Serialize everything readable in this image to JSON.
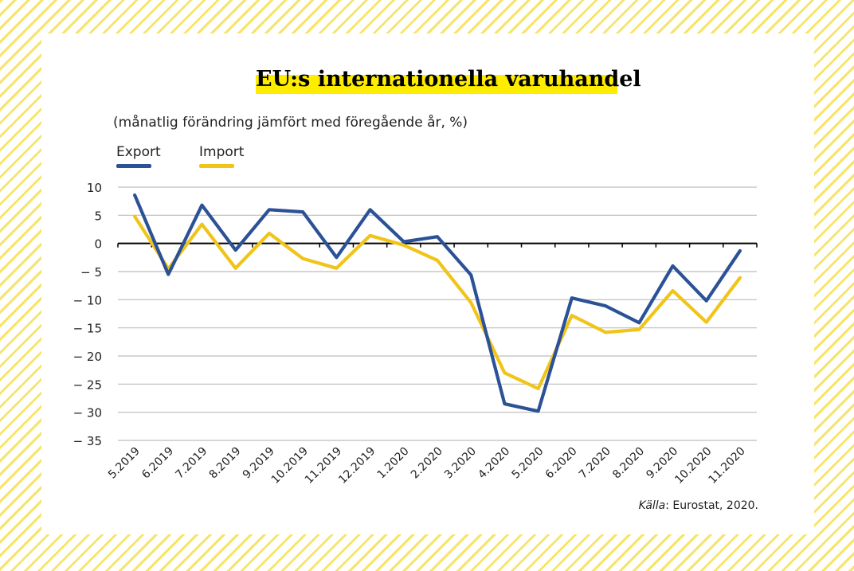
{
  "title": "EU:s internationella varuhandel",
  "subtitle": "(månatlig förändring jämfört med föregående år, %)",
  "source": {
    "label": "Källa",
    "text": ": Eurostat, 2020."
  },
  "colors": {
    "export": "#2b5196",
    "import": "#f0c419",
    "highlight": "#ffed00",
    "grid": "#bdbdbd"
  },
  "chart_data": {
    "type": "line",
    "categories": [
      "5.2019",
      "6.2019",
      "7.2019",
      "8.2019",
      "9.2019",
      "10.2019",
      "11.2019",
      "12.2019",
      "1.2020",
      "2.2020",
      "3.2020",
      "4.2020",
      "5.2020",
      "6.2020",
      "7.2020",
      "8.2020",
      "9.2020",
      "10.2020",
      "11.2020"
    ],
    "series": [
      {
        "name": "Export",
        "color": "#2b5196",
        "values": [
          8.6,
          -5.5,
          6.8,
          -1.2,
          6.0,
          5.6,
          -2.5,
          6.0,
          0.3,
          1.2,
          -5.6,
          -28.5,
          -29.8,
          -9.7,
          -11.1,
          -14.1,
          -4.0,
          -10.2,
          -1.3
        ]
      },
      {
        "name": "Import",
        "color": "#f0c419",
        "values": [
          4.8,
          -4.5,
          3.4,
          -4.4,
          1.8,
          -2.7,
          -4.4,
          1.4,
          -0.3,
          -3.0,
          -10.5,
          -23.0,
          -25.8,
          -12.8,
          -15.8,
          -15.3,
          -8.4,
          -14.0,
          -6.1
        ]
      }
    ],
    "yticks": [
      10,
      5,
      0,
      -5,
      -10,
      -15,
      -20,
      -25,
      -30,
      -35
    ],
    "ytick_labels": [
      "10",
      "5",
      "0",
      "− 5",
      "− 10",
      "− 15",
      "− 20",
      "− 25",
      "− 30",
      "− 35"
    ],
    "ylim": [
      -35,
      10
    ],
    "grid": true,
    "legend": "top-left"
  }
}
